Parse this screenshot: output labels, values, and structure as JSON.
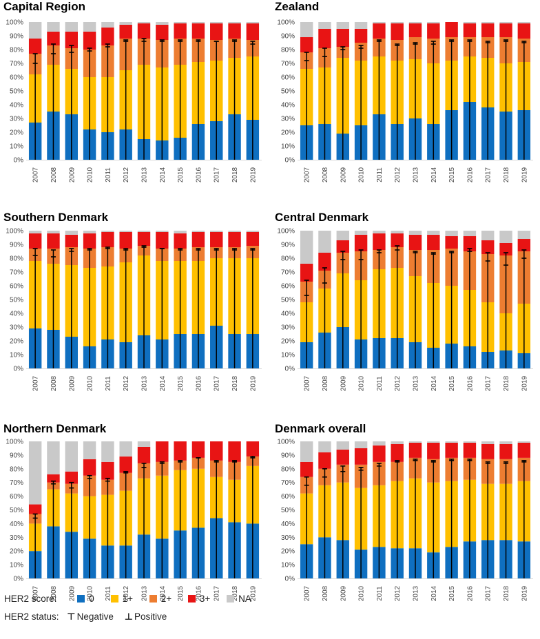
{
  "legend": {
    "score_title": "HER2 score:",
    "status_title": "HER2 status:",
    "scores": [
      {
        "label": "0",
        "color": "#0f6fc0"
      },
      {
        "label": "1+",
        "color": "#ffc000"
      },
      {
        "label": "2+",
        "color": "#ed7d31"
      },
      {
        "label": "3+",
        "color": "#e81414"
      },
      {
        "label": "NA",
        "color": "#c9c9c9"
      }
    ],
    "negative_label": "Negative",
    "positive_label": "Positive"
  },
  "chart_data": [
    {
      "type": "bar",
      "stacked": true,
      "title": "Capital Region",
      "categories": [
        "2007",
        "2008",
        "2009",
        "2010",
        "2011",
        "2012",
        "2013",
        "2014",
        "2015",
        "2016",
        "2017",
        "2018",
        "2019"
      ],
      "y_ticks": [
        "0%",
        "10%",
        "20%",
        "30%",
        "40%",
        "50%",
        "60%",
        "70%",
        "80%",
        "90%",
        "100%"
      ],
      "ylim": [
        0,
        100
      ],
      "series": [
        {
          "name": "0",
          "values": [
            27,
            35,
            33,
            22,
            20,
            22,
            15,
            14,
            16,
            26,
            28,
            33,
            29
          ]
        },
        {
          "name": "1+",
          "values": [
            35,
            34,
            33,
            38,
            40,
            43,
            54,
            53,
            53,
            45,
            44,
            41,
            46
          ]
        },
        {
          "name": "2+",
          "values": [
            15,
            14,
            15,
            20,
            23,
            23,
            19,
            20,
            19,
            17,
            15,
            14,
            12
          ]
        },
        {
          "name": "3+",
          "values": [
            11,
            10,
            12,
            13,
            13,
            10,
            11,
            11,
            11,
            11,
            12,
            11,
            12
          ]
        },
        {
          "name": "NA",
          "values": [
            12,
            7,
            7,
            7,
            4,
            2,
            1,
            2,
            1,
            1,
            1,
            1,
            1
          ]
        }
      ],
      "negative": [
        77,
        84,
        83,
        81,
        84,
        87,
        88,
        87,
        87,
        87,
        86,
        87,
        86
      ],
      "positive": [
        70,
        77,
        78,
        79,
        82,
        86,
        86,
        86,
        86,
        86,
        86,
        86,
        84
      ]
    },
    {
      "type": "bar",
      "stacked": true,
      "title": "Zealand",
      "categories": [
        "2007",
        "2008",
        "2009",
        "2010",
        "2011",
        "2012",
        "2013",
        "2014",
        "2015",
        "2016",
        "2017",
        "2018",
        "2019"
      ],
      "y_ticks": [
        "0%",
        "10%",
        "20%",
        "30%",
        "40%",
        "50%",
        "60%",
        "70%",
        "80%",
        "90%",
        "100%"
      ],
      "ylim": [
        0,
        100
      ],
      "series": [
        {
          "name": "0",
          "values": [
            25,
            26,
            19,
            25,
            33,
            26,
            30,
            26,
            36,
            42,
            38,
            35,
            36
          ]
        },
        {
          "name": "1+",
          "values": [
            41,
            41,
            55,
            47,
            42,
            46,
            43,
            44,
            36,
            33,
            36,
            35,
            35
          ]
        },
        {
          "name": "2+",
          "values": [
            12,
            14,
            8,
            13,
            13,
            15,
            16,
            18,
            17,
            14,
            15,
            19,
            17
          ]
        },
        {
          "name": "3+",
          "values": [
            11,
            14,
            13,
            10,
            11,
            12,
            10,
            11,
            11,
            10,
            10,
            10,
            11
          ]
        },
        {
          "name": "NA",
          "values": [
            11,
            5,
            5,
            5,
            1,
            1,
            1,
            1,
            0,
            1,
            1,
            1,
            1
          ]
        }
      ],
      "negative": [
        78,
        81,
        82,
        83,
        87,
        84,
        85,
        86,
        87,
        87,
        86,
        87,
        86
      ],
      "positive": [
        72,
        75,
        80,
        81,
        86,
        83,
        84,
        84,
        86,
        86,
        85,
        86,
        85
      ]
    },
    {
      "type": "bar",
      "stacked": true,
      "title": "Southern Denmark",
      "categories": [
        "2007",
        "2008",
        "2009",
        "2010",
        "2011",
        "2012",
        "2013",
        "2014",
        "2015",
        "2016",
        "2017",
        "2018",
        "2019"
      ],
      "y_ticks": [
        "0%",
        "10%",
        "20%",
        "30%",
        "40%",
        "50%",
        "60%",
        "70%",
        "80%",
        "90%",
        "100%"
      ],
      "ylim": [
        0,
        100
      ],
      "series": [
        {
          "name": "0",
          "values": [
            29,
            28,
            23,
            16,
            21,
            19,
            24,
            21,
            25,
            25,
            31,
            25,
            25
          ]
        },
        {
          "name": "1+",
          "values": [
            49,
            48,
            52,
            57,
            53,
            58,
            58,
            57,
            53,
            53,
            49,
            55,
            55
          ]
        },
        {
          "name": "2+",
          "values": [
            9,
            11,
            13,
            14,
            14,
            10,
            7,
            9,
            9,
            10,
            8,
            8,
            9
          ]
        },
        {
          "name": "3+",
          "values": [
            11,
            11,
            9,
            11,
            11,
            12,
            10,
            12,
            11,
            11,
            11,
            11,
            10
          ]
        },
        {
          "name": "NA",
          "values": [
            2,
            2,
            3,
            2,
            1,
            1,
            1,
            1,
            2,
            1,
            1,
            1,
            1
          ]
        }
      ],
      "negative": [
        87,
        86,
        87,
        87,
        88,
        87,
        89,
        87,
        87,
        87,
        87,
        87,
        87
      ],
      "positive": [
        82,
        81,
        85,
        86,
        87,
        86,
        88,
        87,
        86,
        86,
        86,
        86,
        86
      ]
    },
    {
      "type": "bar",
      "stacked": true,
      "title": "Central Denmark",
      "categories": [
        "2007",
        "2008",
        "2009",
        "2010",
        "2011",
        "2012",
        "2013",
        "2014",
        "2015",
        "2016",
        "2017",
        "2018",
        "2019"
      ],
      "y_ticks": [
        "0%",
        "10%",
        "20%",
        "30%",
        "40%",
        "50%",
        "60%",
        "70%",
        "80%",
        "90%",
        "100%"
      ],
      "ylim": [
        0,
        100
      ],
      "series": [
        {
          "name": "0",
          "values": [
            19,
            26,
            30,
            21,
            22,
            22,
            19,
            15,
            18,
            16,
            12,
            13,
            11
          ]
        },
        {
          "name": "1+",
          "values": [
            29,
            32,
            39,
            43,
            50,
            51,
            48,
            47,
            42,
            41,
            36,
            27,
            36
          ]
        },
        {
          "name": "2+",
          "values": [
            15,
            13,
            15,
            21,
            14,
            15,
            19,
            24,
            27,
            28,
            35,
            42,
            38
          ]
        },
        {
          "name": "3+",
          "values": [
            13,
            13,
            9,
            12,
            12,
            10,
            11,
            11,
            9,
            11,
            10,
            9,
            9
          ]
        },
        {
          "name": "NA",
          "values": [
            24,
            16,
            7,
            3,
            2,
            2,
            3,
            3,
            4,
            4,
            7,
            9,
            6
          ]
        }
      ],
      "negative": [
        64,
        73,
        85,
        86,
        86,
        89,
        85,
        84,
        85,
        87,
        84,
        84,
        86
      ],
      "positive": [
        53,
        62,
        79,
        79,
        84,
        86,
        84,
        83,
        84,
        85,
        78,
        75,
        80
      ]
    },
    {
      "type": "bar",
      "stacked": true,
      "title": "Northern Denmark",
      "categories": [
        "2007",
        "2008",
        "2009",
        "2010",
        "2011",
        "2012",
        "2013",
        "2014",
        "2015",
        "2016",
        "2017",
        "2018",
        "2019"
      ],
      "y_ticks": [
        "0%",
        "10%",
        "20%",
        "30%",
        "40%",
        "50%",
        "60%",
        "70%",
        "80%",
        "90%",
        "100%"
      ],
      "ylim": [
        0,
        100
      ],
      "series": [
        {
          "name": "0",
          "values": [
            20,
            38,
            34,
            29,
            24,
            24,
            32,
            29,
            35,
            37,
            44,
            41,
            40
          ]
        },
        {
          "name": "1+",
          "values": [
            20,
            27,
            28,
            31,
            37,
            40,
            41,
            46,
            44,
            43,
            30,
            31,
            42
          ]
        },
        {
          "name": "2+",
          "values": [
            7,
            5,
            7,
            15,
            11,
            13,
            11,
            10,
            7,
            8,
            12,
            13,
            7
          ]
        },
        {
          "name": "3+",
          "values": [
            7,
            6,
            9,
            12,
            13,
            12,
            12,
            15,
            14,
            12,
            14,
            15,
            11
          ]
        },
        {
          "name": "NA",
          "values": [
            46,
            24,
            22,
            13,
            15,
            11,
            4,
            0,
            0,
            0,
            0,
            0,
            0
          ]
        }
      ],
      "negative": [
        47,
        71,
        70,
        75,
        73,
        78,
        84,
        85,
        86,
        88,
        86,
        86,
        89
      ],
      "positive": [
        44,
        69,
        66,
        73,
        71,
        77,
        81,
        84,
        85,
        88,
        85,
        85,
        88
      ]
    },
    {
      "type": "bar",
      "stacked": true,
      "title": "Denmark overall",
      "categories": [
        "2007",
        "2008",
        "2009",
        "2010",
        "2011",
        "2012",
        "2013",
        "2014",
        "2015",
        "2016",
        "2017",
        "2018",
        "2019"
      ],
      "y_ticks": [
        "0%",
        "10%",
        "20%",
        "30%",
        "40%",
        "50%",
        "60%",
        "70%",
        "80%",
        "90%",
        "100%"
      ],
      "ylim": [
        0,
        100
      ],
      "series": [
        {
          "name": "0",
          "values": [
            25,
            30,
            28,
            21,
            23,
            22,
            22,
            19,
            23,
            27,
            28,
            28,
            27
          ]
        },
        {
          "name": "1+",
          "values": [
            37,
            38,
            42,
            45,
            45,
            49,
            51,
            51,
            48,
            45,
            41,
            41,
            44
          ]
        },
        {
          "name": "2+",
          "values": [
            12,
            12,
            13,
            17,
            17,
            14,
            15,
            17,
            17,
            16,
            18,
            18,
            17
          ]
        },
        {
          "name": "3+",
          "values": [
            11,
            12,
            11,
            12,
            12,
            13,
            11,
            12,
            11,
            11,
            11,
            11,
            11
          ]
        },
        {
          "name": "NA",
          "values": [
            15,
            8,
            6,
            5,
            3,
            2,
            1,
            1,
            1,
            1,
            2,
            2,
            1
          ]
        }
      ],
      "negative": [
        74,
        80,
        82,
        81,
        84,
        86,
        87,
        86,
        87,
        87,
        85,
        85,
        86
      ],
      "positive": [
        68,
        74,
        78,
        79,
        82,
        85,
        86,
        85,
        86,
        86,
        84,
        84,
        85
      ]
    }
  ]
}
